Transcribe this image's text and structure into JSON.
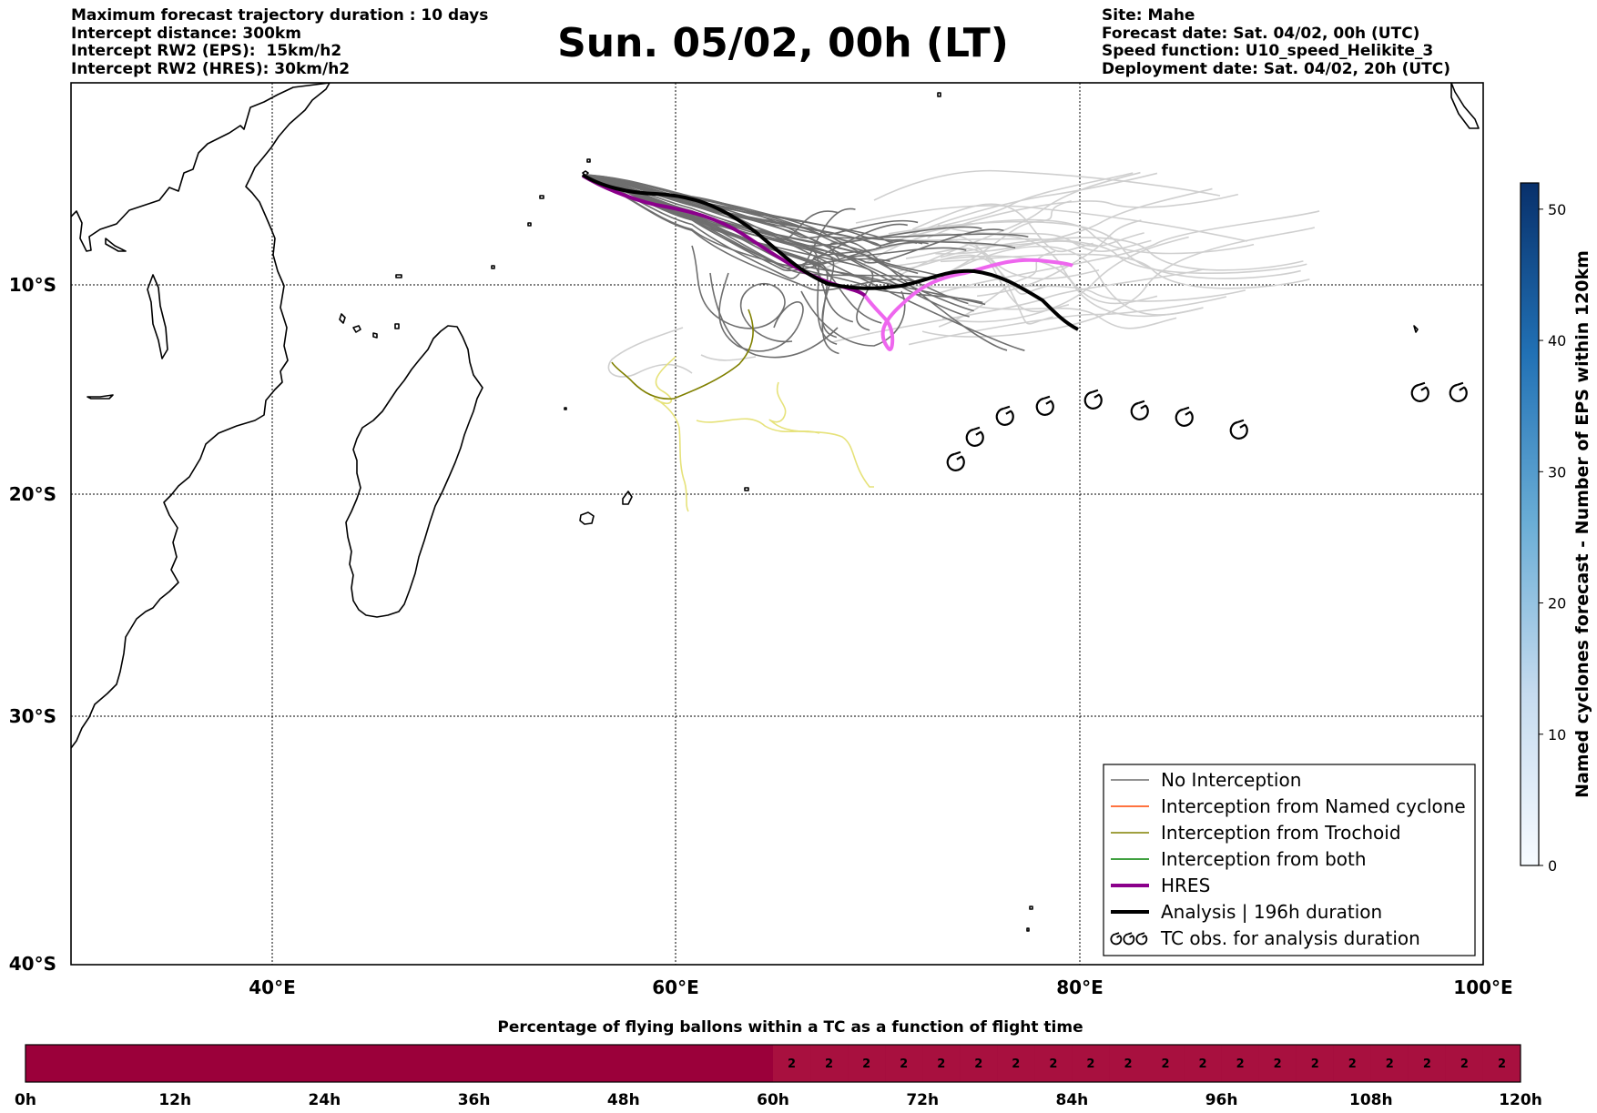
{
  "header": {
    "left_lines": [
      "Maximum forecast trajectory duration : 10 days",
      "Intercept distance: 300km",
      "Intercept RW2 (EPS):  15km/h2",
      "Intercept RW2 (HRES): 30km/h2"
    ],
    "right_lines": [
      "Site: Mahe",
      "Forecast date: Sat. 04/02, 00h (UTC)",
      "Speed function: U10_speed_Helikite_3",
      "Deployment date: Sat. 04/02, 20h (UTC)"
    ],
    "title": "Sun. 05/02, 00h (LT)"
  },
  "map": {
    "lon_ticks": [
      "40°E",
      "60°E",
      "80°E",
      "100°E"
    ],
    "lat_ticks": [
      "10°S",
      "20°S",
      "30°S",
      "40°S"
    ],
    "colors": {
      "no_interception": "#6e6e6e",
      "named_cyclone": "#ff4500",
      "trochoid": "#808000",
      "both": "#008000",
      "hres": "#8b008b",
      "analysis": "#000000",
      "eps_light": "#cfcfcf",
      "trochoid_light": "#e6e27a",
      "hres_light": "#ee66ee"
    },
    "legend": [
      {
        "label": "No Interception",
        "style": "thin",
        "color": "#6e6e6e"
      },
      {
        "label": "Interception from Named cyclone",
        "style": "thin",
        "color": "#ff4500"
      },
      {
        "label": "Interception from Trochoid",
        "style": "thin",
        "color": "#808000"
      },
      {
        "label": "Interception from both",
        "style": "thin",
        "color": "#008000"
      },
      {
        "label": "HRES",
        "style": "thick",
        "color": "#8b008b"
      },
      {
        "label": "Analysis | 196h duration",
        "style": "thick",
        "color": "#000000"
      },
      {
        "label": "TC obs. for analysis duration",
        "style": "tc-symbol",
        "color": "#000000"
      }
    ]
  },
  "colorbar": {
    "label": "Named cyclones forecast - Number of EPS within 120km",
    "ticks": [
      "0",
      "10",
      "20",
      "30",
      "40",
      "50"
    ],
    "range": [
      0,
      52
    ]
  },
  "flight_bar": {
    "title": "Percentage of flying ballons within a TC as a function of flight time",
    "ticks": [
      "0h",
      "12h",
      "24h",
      "36h",
      "48h",
      "60h",
      "72h",
      "84h",
      "96h",
      "108h",
      "120h"
    ],
    "base_color": "#9b003a",
    "marked_color": "#a8103f",
    "cell_value": "2",
    "marked_from_hour": 60,
    "marked_cells": 20
  }
}
